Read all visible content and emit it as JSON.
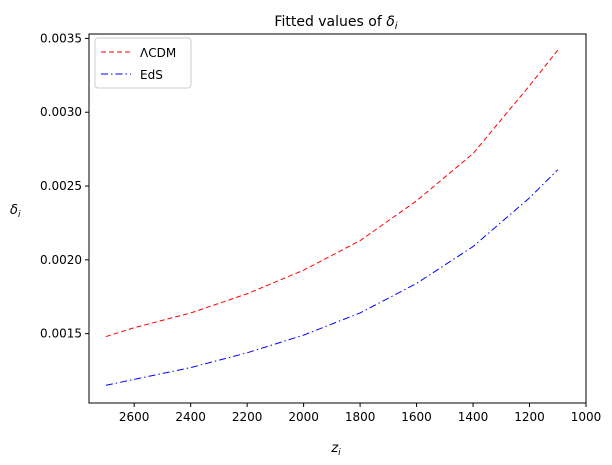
{
  "chart_data": {
    "type": "line",
    "title": "Fitted values of δ_i",
    "title_parts": {
      "prefix": "Fitted values of ",
      "sym": "δ",
      "sub": "i"
    },
    "xlabel": {
      "sym": "z",
      "sub": "i"
    },
    "ylabel": {
      "sym": "δ",
      "sub": "i"
    },
    "xlim": [
      2760,
      1000
    ],
    "ylim": [
      0.00103,
      0.00353
    ],
    "x_reversed": true,
    "x_ticks": [
      2600,
      2400,
      2200,
      2000,
      1800,
      1600,
      1400,
      1200,
      1000
    ],
    "y_ticks": [
      0.0015,
      0.002,
      0.0025,
      0.003,
      0.0035
    ],
    "y_tick_labels": [
      "0.0015",
      "0.0020",
      "0.0025",
      "0.0030",
      "0.0035"
    ],
    "legend_position": "top-left",
    "grid": false,
    "x": [
      2700,
      2600,
      2400,
      2200,
      2000,
      1800,
      1600,
      1400,
      1200,
      1100
    ],
    "series": [
      {
        "name": "ΛCDM",
        "color": "#ff0000",
        "style": "dashed",
        "values": [
          0.00148,
          0.00154,
          0.00164,
          0.00177,
          0.00193,
          0.00213,
          0.0024,
          0.00272,
          0.00318,
          0.00342
        ]
      },
      {
        "name": "EdS",
        "color": "#0000ff",
        "style": "dashdot",
        "values": [
          0.00115,
          0.00119,
          0.00127,
          0.00137,
          0.00149,
          0.00164,
          0.00184,
          0.00209,
          0.00242,
          0.00261
        ]
      }
    ]
  }
}
